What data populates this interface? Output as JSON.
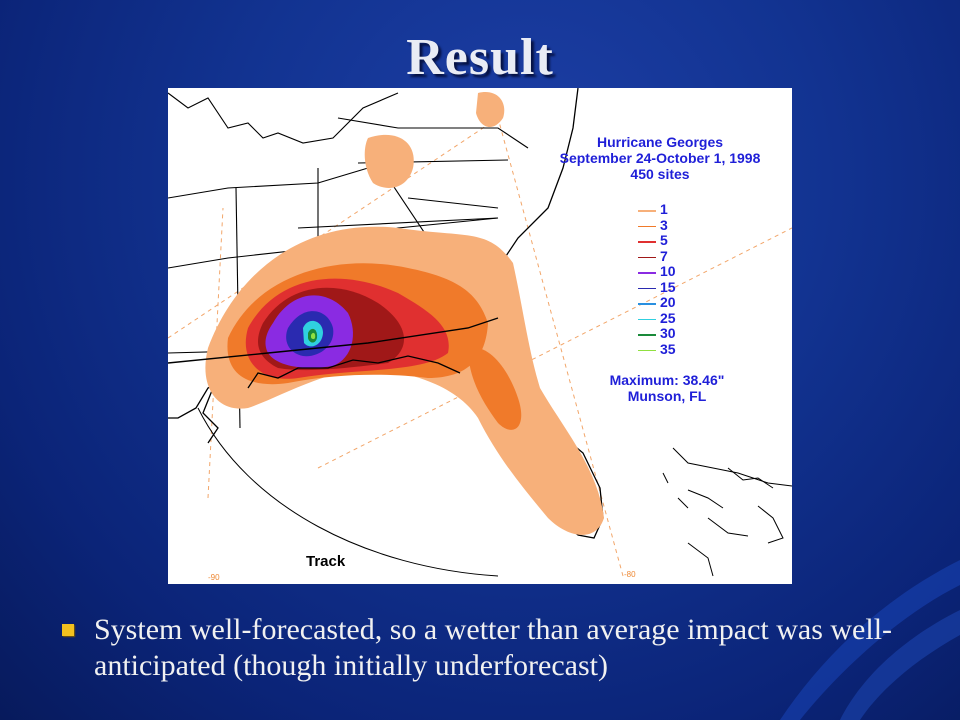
{
  "slide": {
    "title": "Result",
    "bullets": [
      "System well-forecasted, so a wetter than average impact was well-anticipated (though initially underforecast)"
    ]
  },
  "map": {
    "title_lines": [
      "Hurricane Georges",
      "September 24-October 1, 1998",
      "450 sites"
    ],
    "legend": [
      {
        "label": "1",
        "color": "#f7b07a"
      },
      {
        "label": "3",
        "color": "#f07a2a"
      },
      {
        "label": "5",
        "color": "#e03030"
      },
      {
        "label": "7",
        "color": "#a01818"
      },
      {
        "label": "10",
        "color": "#8a2be2"
      },
      {
        "label": "15",
        "color": "#2a2ab0"
      },
      {
        "label": "20",
        "color": "#2a90e0"
      },
      {
        "label": "25",
        "color": "#30d0e0"
      },
      {
        "label": "30",
        "color": "#1a8a3a"
      },
      {
        "label": "35",
        "color": "#90e040"
      }
    ],
    "maximum_lines": [
      "Maximum:  38.46\"",
      "Munson, FL"
    ],
    "track_label": "Track",
    "lon_labels": [
      "-90",
      "-80"
    ]
  },
  "colors": {
    "background": "#123391",
    "title_text": "#e9ecf5",
    "map_text": "#1f1fd8",
    "bullet": "#f2c01e"
  }
}
